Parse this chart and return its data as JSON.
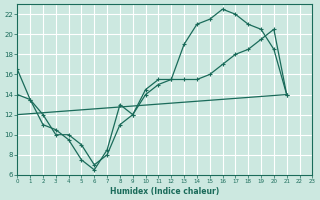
{
  "xlabel": "Humidex (Indice chaleur)",
  "xlim": [
    0,
    23
  ],
  "ylim": [
    6,
    23
  ],
  "xticks": [
    0,
    1,
    2,
    3,
    4,
    5,
    6,
    7,
    8,
    9,
    10,
    11,
    12,
    13,
    14,
    15,
    16,
    17,
    18,
    19,
    20,
    21,
    22,
    23
  ],
  "yticks": [
    6,
    8,
    10,
    12,
    14,
    16,
    18,
    20,
    22
  ],
  "bg_color": "#cce8e0",
  "line_color": "#1a6b5a",
  "grid_color": "#ffffff",
  "line1_x": [
    0,
    1,
    2,
    3,
    4,
    5,
    6,
    7,
    8,
    9,
    10,
    11,
    12,
    13,
    14,
    15,
    16,
    17,
    18,
    19,
    20,
    21
  ],
  "line1_y": [
    16.5,
    13.5,
    11.0,
    10.5,
    9.5,
    7.5,
    6.5,
    8.5,
    13.0,
    12.0,
    14.5,
    15.5,
    15.5,
    19.0,
    21.0,
    21.5,
    22.5,
    22.0,
    21.0,
    20.5,
    18.5,
    14.0
  ],
  "line2_x": [
    0,
    1,
    2,
    3,
    4,
    5,
    6,
    7,
    8,
    9,
    10,
    11,
    12,
    13,
    14,
    15,
    16,
    17,
    18,
    19,
    20,
    21
  ],
  "line2_y": [
    14.0,
    13.5,
    12.0,
    10.0,
    10.0,
    9.0,
    7.0,
    8.0,
    11.0,
    12.0,
    14.0,
    15.0,
    15.5,
    15.5,
    15.5,
    16.0,
    17.0,
    18.0,
    18.5,
    19.5,
    20.5,
    14.0
  ],
  "line3_x": [
    0,
    21
  ],
  "line3_y": [
    12.0,
    14.0
  ]
}
